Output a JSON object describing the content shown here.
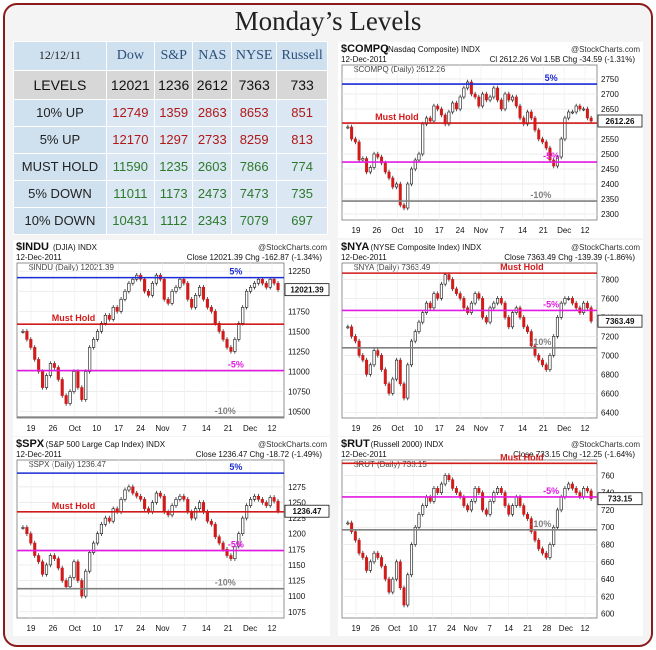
{
  "title": "Monday’s Levels",
  "table": {
    "header": [
      "12/12/11",
      "Dow",
      "S&P",
      "NAS",
      "NYSE",
      "Russell"
    ],
    "rows": [
      {
        "label": "LEVELS",
        "values": [
          "12021",
          "1236",
          "2612",
          "7363",
          "733"
        ],
        "style": "levels"
      },
      {
        "label": "10% UP",
        "values": [
          "12749",
          "1359",
          "2863",
          "8653",
          "851"
        ],
        "style": "red"
      },
      {
        "label": "5% UP",
        "values": [
          "12170",
          "1297",
          "2733",
          "8259",
          "813"
        ],
        "style": "red"
      },
      {
        "label": "MUST HOLD",
        "values": [
          "11590",
          "1235",
          "2603",
          "7866",
          "774"
        ],
        "style": "green"
      },
      {
        "label": "5% DOWN",
        "values": [
          "11011",
          "1173",
          "2473",
          "7473",
          "735"
        ],
        "style": "green"
      },
      {
        "label": "10% DOWN",
        "values": [
          "10431",
          "1112",
          "2343",
          "7079",
          "697"
        ],
        "style": "green"
      }
    ]
  },
  "chart_data": [
    {
      "type": "candlestick",
      "symbol": "$COMPQ",
      "name": "(Nasdaq Composite)",
      "exchange": "INDX",
      "watermark": "@StockCharts.com",
      "date": "12-Dec-2011",
      "stats": "Cl 2612.26  Vol 1.5B  Chg -34.59 (-1.31%)",
      "legend": "$COMPQ (Daily) 2612.26",
      "last_label": "2612.26",
      "ylim": [
        2280,
        2780
      ],
      "yticks": [
        2300,
        2350,
        2400,
        2450,
        2500,
        2550,
        2600,
        2650,
        2700,
        2750
      ],
      "xticks": [
        "19",
        "26",
        "Oct",
        "10",
        "17",
        "24",
        "Nov",
        "7",
        "14",
        "21",
        "Dec",
        "12"
      ],
      "close": [
        2590,
        2550,
        2540,
        2480,
        2485,
        2440,
        2455,
        2500,
        2490,
        2470,
        2440,
        2420,
        2390,
        2400,
        2330,
        2320,
        2400,
        2450,
        2480,
        2500,
        2600,
        2620,
        2610,
        2660,
        2650,
        2630,
        2600,
        2640,
        2670,
        2650,
        2690,
        2720,
        2740,
        2700,
        2690,
        2660,
        2700,
        2680,
        2690,
        2720,
        2680,
        2650,
        2700,
        2680,
        2690,
        2660,
        2620,
        2600,
        2640,
        2620,
        2580,
        2550,
        2540,
        2520,
        2480,
        2460,
        2490,
        2550,
        2620,
        2640,
        2640,
        2660,
        2650,
        2650,
        2620,
        2610
      ],
      "lines": [
        {
          "value": 2733,
          "label": "5%",
          "color": "#1a2bd6"
        },
        {
          "value": 2603,
          "label": "Must Hold",
          "color": "#d11a1a"
        },
        {
          "value": 2473,
          "label": "-5%",
          "color": "#e21ae2"
        },
        {
          "value": 2343,
          "label": "-10%",
          "color": "#808080"
        }
      ]
    },
    {
      "type": "candlestick",
      "symbol": "$INDU",
      "name": "(DJIA)",
      "exchange": "INDX",
      "watermark": "@StockCharts.com",
      "date": "12-Dec-2011",
      "stats": "Close 12021.39  Chg -162.87 (-1.34%)",
      "legend": "$INDU (Daily) 12021.39",
      "last_label": "12021.39",
      "ylim": [
        10420,
        12290
      ],
      "yticks": [
        10500,
        10750,
        11000,
        11250,
        11500,
        11750,
        12000,
        12250
      ],
      "xticks": [
        "19",
        "26",
        "Oct",
        "10",
        "17",
        "24",
        "Nov",
        "7",
        "14",
        "21",
        "Dec",
        "12"
      ],
      "close": [
        11500,
        11400,
        11300,
        11150,
        11000,
        10800,
        10950,
        11100,
        11050,
        10900,
        10700,
        10600,
        10750,
        11000,
        10800,
        10650,
        11000,
        11300,
        11400,
        11500,
        11600,
        11700,
        11650,
        11800,
        11750,
        11900,
        12000,
        12100,
        12150,
        12200,
        12150,
        12000,
        11950,
        12100,
        12200,
        12150,
        11900,
        11850,
        12000,
        12050,
        12150,
        12100,
        11900,
        11800,
        11950,
        12050,
        11900,
        11800,
        11750,
        11600,
        11500,
        11400,
        11300,
        11250,
        11400,
        11600,
        11800,
        12000,
        12050,
        12100,
        12150,
        12100,
        12050,
        12150,
        12100,
        12020
      ],
      "lines": [
        {
          "value": 12170,
          "label": "5%",
          "color": "#1a2bd6"
        },
        {
          "value": 11590,
          "label": "Must Hold",
          "color": "#d11a1a"
        },
        {
          "value": 11011,
          "label": "-5%",
          "color": "#e21ae2"
        },
        {
          "value": 10431,
          "label": "-10%",
          "color": "#808080"
        }
      ]
    },
    {
      "type": "candlestick",
      "symbol": "$NYA",
      "name": "(NYSE Composite Index)",
      "exchange": "INDX",
      "watermark": "@StockCharts.com",
      "date": "12-Dec-2011",
      "stats": "Close 7363.49  Chg -139.39 (-1.86%)",
      "legend": "$NYA (Daily) 7363.49",
      "last_label": "7363.49",
      "ylim": [
        6340,
        7920
      ],
      "yticks": [
        6400,
        6600,
        6800,
        7000,
        7200,
        7400,
        7600,
        7800
      ],
      "xticks": [
        "19",
        "26",
        "Oct",
        "10",
        "17",
        "24",
        "Nov",
        "7",
        "14",
        "21",
        "Dec",
        "12"
      ],
      "close": [
        7300,
        7200,
        7150,
        7000,
        6950,
        6800,
        6900,
        7050,
        7000,
        6850,
        6700,
        6600,
        6750,
        6950,
        6700,
        6550,
        6900,
        7150,
        7250,
        7350,
        7450,
        7550,
        7500,
        7650,
        7600,
        7750,
        7850,
        7800,
        7700,
        7650,
        7600,
        7500,
        7450,
        7550,
        7650,
        7600,
        7400,
        7350,
        7500,
        7550,
        7600,
        7550,
        7400,
        7300,
        7450,
        7500,
        7400,
        7300,
        7250,
        7100,
        7000,
        6950,
        6900,
        6850,
        7000,
        7200,
        7400,
        7550,
        7600,
        7600,
        7550,
        7500,
        7450,
        7550,
        7500,
        7360
      ],
      "lines": [
        {
          "value": 7866,
          "label": "Must Hold",
          "color": "#d11a1a"
        },
        {
          "value": 7473,
          "label": "-5%",
          "color": "#e21ae2"
        },
        {
          "value": 7079,
          "label": "-10%",
          "color": "#808080"
        }
      ]
    },
    {
      "type": "candlestick",
      "symbol": "$SPX",
      "name": "(S&P 500 Large Cap Index)",
      "exchange": "INDX",
      "watermark": "@StockCharts.com",
      "date": "12-Dec-2011",
      "stats": "Close 1236.47  Chg -18.72 (-1.49%)",
      "legend": "$SPX (Daily) 1236.47",
      "last_label": "1236.47",
      "ylim": [
        1065,
        1310
      ],
      "yticks": [
        1075,
        1100,
        1125,
        1150,
        1175,
        1200,
        1225,
        1250,
        1275
      ],
      "xticks": [
        "19",
        "26",
        "Oct",
        "10",
        "17",
        "24",
        "Nov",
        "7",
        "14",
        "21",
        "Dec",
        "12"
      ],
      "close": [
        1210,
        1200,
        1185,
        1165,
        1155,
        1135,
        1150,
        1165,
        1160,
        1145,
        1125,
        1115,
        1130,
        1155,
        1125,
        1100,
        1140,
        1170,
        1185,
        1200,
        1215,
        1225,
        1220,
        1240,
        1235,
        1255,
        1270,
        1275,
        1265,
        1260,
        1255,
        1240,
        1235,
        1250,
        1265,
        1260,
        1235,
        1230,
        1245,
        1255,
        1260,
        1255,
        1235,
        1225,
        1240,
        1250,
        1235,
        1220,
        1215,
        1195,
        1185,
        1175,
        1165,
        1160,
        1180,
        1200,
        1225,
        1245,
        1255,
        1260,
        1255,
        1250,
        1245,
        1258,
        1252,
        1236
      ],
      "lines": [
        {
          "value": 1297,
          "label": "5%",
          "color": "#1a2bd6"
        },
        {
          "value": 1235,
          "label": "Must Hold",
          "color": "#d11a1a"
        },
        {
          "value": 1173,
          "label": "-5%",
          "color": "#e21ae2"
        },
        {
          "value": 1112,
          "label": "-10%",
          "color": "#808080"
        }
      ]
    },
    {
      "type": "candlestick",
      "symbol": "$RUT",
      "name": "(Russell 2000)",
      "exchange": "INDX",
      "watermark": "@StockCharts.com",
      "date": "12-Dec-2011",
      "stats": "Close 733.15  Chg -12.25 (-1.64%)",
      "legend": "$RUT (Daily) 733.15",
      "last_label": "733.15",
      "ylim": [
        595,
        772
      ],
      "yticks": [
        600,
        620,
        640,
        660,
        680,
        700,
        720,
        740,
        760
      ],
      "xticks": [
        "19",
        "26",
        "Oct",
        "10",
        "17",
        "24",
        "Nov",
        "7",
        "14",
        "21",
        "28",
        "Dec",
        "12"
      ],
      "close": [
        705,
        695,
        685,
        670,
        665,
        650,
        660,
        670,
        665,
        655,
        640,
        625,
        640,
        660,
        630,
        610,
        645,
        680,
        700,
        715,
        725,
        735,
        730,
        745,
        740,
        750,
        760,
        755,
        745,
        740,
        735,
        725,
        720,
        730,
        745,
        740,
        720,
        715,
        730,
        740,
        745,
        740,
        725,
        715,
        725,
        735,
        725,
        715,
        710,
        695,
        685,
        675,
        670,
        665,
        680,
        700,
        720,
        735,
        745,
        750,
        745,
        740,
        735,
        745,
        742,
        733
      ],
      "lines": [
        {
          "value": 774,
          "label": "Must Hold",
          "color": "#d11a1a"
        },
        {
          "value": 735,
          "label": "-5%",
          "color": "#e21ae2"
        },
        {
          "value": 697,
          "label": "-10%",
          "color": "#808080"
        }
      ]
    }
  ]
}
